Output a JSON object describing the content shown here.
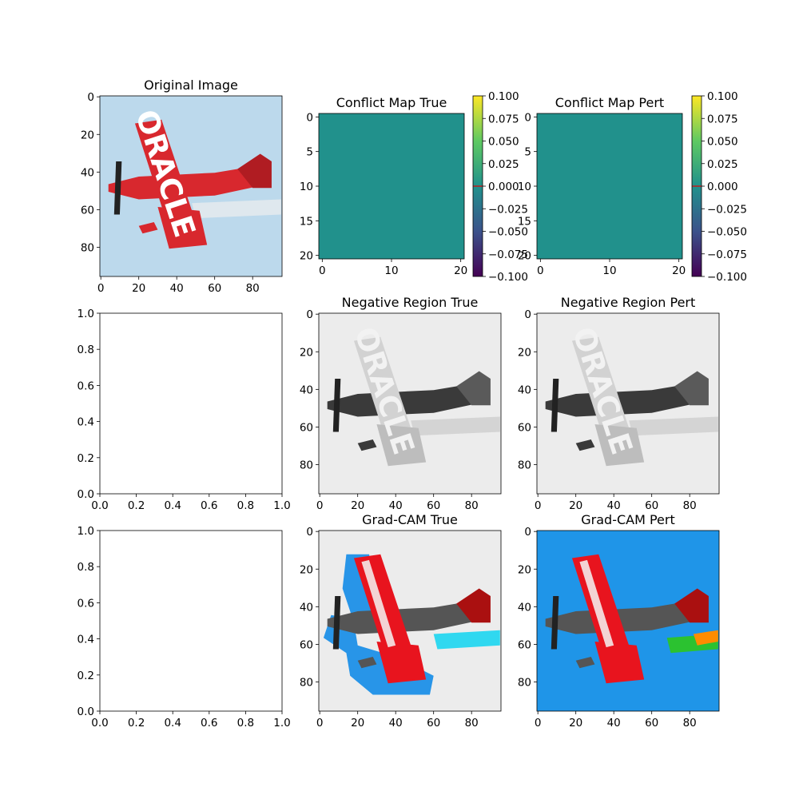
{
  "figure": {
    "background": "#ffffff"
  },
  "chart_data": [
    {
      "id": "original",
      "type": "image",
      "title": "Original Image",
      "xlim": [
        -0.5,
        95.5
      ],
      "ylim": [
        95.5,
        -0.5
      ],
      "xticks": [
        0,
        20,
        40,
        60,
        80
      ],
      "yticks": [
        0,
        20,
        40,
        60,
        80
      ],
      "content": "color-airplane",
      "colors": {
        "sky": "#bcd9ec",
        "plane": "#d8282e",
        "smoke": "#dfe8ee"
      }
    },
    {
      "id": "conflict_true",
      "type": "heatmap",
      "title": "Conflict Map True",
      "xlim": [
        -0.5,
        20.5
      ],
      "ylim": [
        20.5,
        -0.5
      ],
      "xticks": [
        0,
        10,
        20
      ],
      "yticks": [
        0,
        5,
        10,
        15,
        20
      ],
      "value": 0.0,
      "fill": "#21918c",
      "colorbar": {
        "cmap": "viridis",
        "range": [
          -0.1,
          0.1
        ],
        "ticks": [
          "0.100",
          "0.075",
          "0.050",
          "0.025",
          "0.000",
          "−0.025",
          "−0.050",
          "−0.075",
          "−0.100"
        ],
        "marker": 0.0,
        "marker_color": "#e60000"
      }
    },
    {
      "id": "conflict_pert",
      "type": "heatmap",
      "title": "Conflict Map Pert",
      "xlim": [
        -0.5,
        20.5
      ],
      "ylim": [
        20.5,
        -0.5
      ],
      "xticks": [
        0,
        10,
        20
      ],
      "yticks": [
        0,
        5,
        10,
        15,
        20
      ],
      "value": 0.0,
      "fill": "#21918c",
      "colorbar": {
        "cmap": "viridis",
        "range": [
          -0.1,
          0.1
        ],
        "ticks": [
          "0.100",
          "0.075",
          "0.050",
          "0.025",
          "0.000",
          "−0.025",
          "−0.050",
          "−0.075",
          "−0.100"
        ],
        "marker": 0.0,
        "marker_color": "#e60000"
      }
    },
    {
      "id": "empty_1",
      "type": "empty",
      "title": "",
      "xlim": [
        0,
        1
      ],
      "ylim": [
        0,
        1
      ],
      "xticks": [
        "0.0",
        "0.2",
        "0.4",
        "0.6",
        "0.8",
        "1.0"
      ],
      "yticks": [
        "0.0",
        "0.2",
        "0.4",
        "0.6",
        "0.8",
        "1.0"
      ]
    },
    {
      "id": "neg_true",
      "type": "image",
      "title": "Negative Region True",
      "xlim": [
        -0.5,
        95.5
      ],
      "ylim": [
        95.5,
        -0.5
      ],
      "xticks": [
        0,
        20,
        40,
        60,
        80
      ],
      "yticks": [
        0,
        20,
        40,
        60,
        80
      ],
      "content": "gray-airplane",
      "colors": {
        "sky": "#ececec",
        "plane": "#3a3a3a",
        "wing": "#d2d2d2",
        "smoke": "#d4d4d4"
      }
    },
    {
      "id": "neg_pert",
      "type": "image",
      "title": "Negative Region Pert",
      "xlim": [
        -0.5,
        95.5
      ],
      "ylim": [
        95.5,
        -0.5
      ],
      "xticks": [
        0,
        20,
        40,
        60,
        80
      ],
      "yticks": [
        0,
        20,
        40,
        60,
        80
      ],
      "content": "gray-airplane",
      "colors": {
        "sky": "#ececec",
        "plane": "#3a3a3a",
        "wing": "#d2d2d2",
        "smoke": "#d4d4d4"
      }
    },
    {
      "id": "empty_2",
      "type": "empty",
      "title": "",
      "xlim": [
        0,
        1
      ],
      "ylim": [
        0,
        1
      ],
      "xticks": [
        "0.0",
        "0.2",
        "0.4",
        "0.6",
        "0.8",
        "1.0"
      ],
      "yticks": [
        "0.0",
        "0.2",
        "0.4",
        "0.6",
        "0.8",
        "1.0"
      ]
    },
    {
      "id": "gradcam_true",
      "type": "image",
      "title": "Grad-CAM True",
      "xlim": [
        -0.5,
        95.5
      ],
      "ylim": [
        95.5,
        -0.5
      ],
      "xticks": [
        0,
        20,
        40,
        60,
        80
      ],
      "yticks": [
        0,
        20,
        40,
        60,
        80
      ],
      "content": "gradcam-true",
      "colors": {
        "sky": "#ececec",
        "blue": "#1e90e8",
        "red": "#e8141e",
        "cyan": "#30d8f0"
      }
    },
    {
      "id": "gradcam_pert",
      "type": "image",
      "title": "Grad-CAM Pert",
      "xlim": [
        -0.5,
        95.5
      ],
      "ylim": [
        95.5,
        -0.5
      ],
      "xticks": [
        0,
        20,
        40,
        60,
        80
      ],
      "yticks": [
        0,
        20,
        40,
        60,
        80
      ],
      "content": "gradcam-pert",
      "colors": {
        "sky": "#1f95e8",
        "blue": "#1e90e8",
        "red": "#e8141e",
        "cyan": "#30d8f0"
      }
    }
  ]
}
